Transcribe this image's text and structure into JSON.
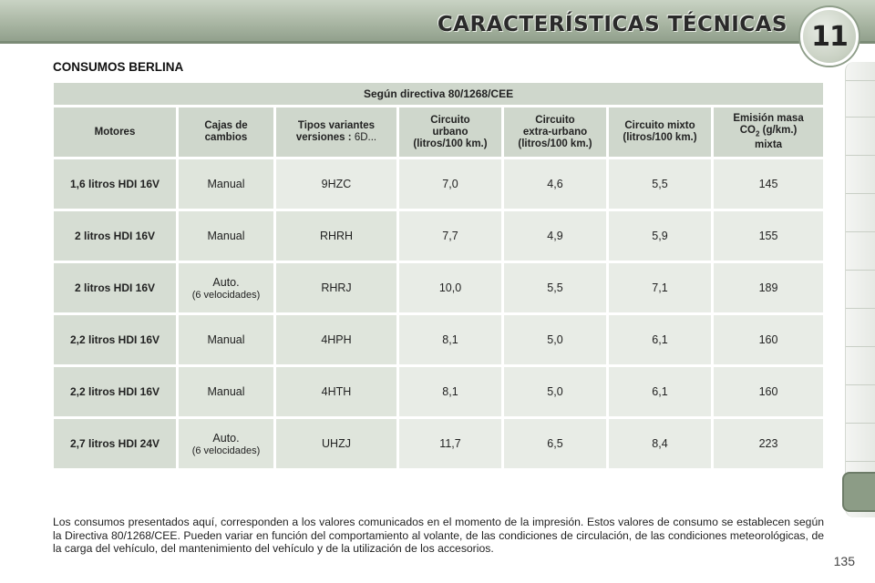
{
  "header": {
    "chapter_title": "CARACTERÍSTICAS TÉCNICAS",
    "chapter_number": "11"
  },
  "section_title": "CONSUMOS BERLINA",
  "table": {
    "directive": "Según directiva 80/1268/CEE",
    "headers": {
      "motores": "Motores",
      "cajas_1": "Cajas de",
      "cajas_2": "cambios",
      "tipos_1": "Tipos variantes",
      "tipos_2": "versiones :",
      "tipos_suffix": "6D...",
      "urbano_1": "Circuito",
      "urbano_2": "urbano",
      "urbano_3": "(litros/100 km.)",
      "extra_1": "Circuito",
      "extra_2": "extra-urbano",
      "extra_3": "(litros/100 km.)",
      "mixto_1": "Circuito mixto",
      "mixto_2": "(litros/100 km.)",
      "emision_1": "Emisión masa",
      "emision_2a": "CO",
      "emision_2sub": "2",
      "emision_2b": " (g/km.)",
      "emision_3": "mixta"
    },
    "rows": [
      {
        "motor": "1,6 litros HDI 16V",
        "caja": "Manual",
        "caja_sub": "",
        "tipo": "9HZC",
        "urbano": "7,0",
        "extra": "4,6",
        "mixto": "5,5",
        "co2": "145"
      },
      {
        "motor": "2 litros HDI 16V",
        "caja": "Manual",
        "caja_sub": "",
        "tipo": "RHRH",
        "urbano": "7,7",
        "extra": "4,9",
        "mixto": "5,9",
        "co2": "155"
      },
      {
        "motor": "2 litros HDI 16V",
        "caja": "Auto.",
        "caja_sub": "(6 velocidades)",
        "tipo": "RHRJ",
        "urbano": "10,0",
        "extra": "5,5",
        "mixto": "7,1",
        "co2": "189"
      },
      {
        "motor": "2,2 litros HDI 16V",
        "caja": "Manual",
        "caja_sub": "",
        "tipo": "4HPH",
        "urbano": "8,1",
        "extra": "5,0",
        "mixto": "6,1",
        "co2": "160"
      },
      {
        "motor": "2,2 litros HDI 16V",
        "caja": "Manual",
        "caja_sub": "",
        "tipo": "4HTH",
        "urbano": "8,1",
        "extra": "5,0",
        "mixto": "6,1",
        "co2": "160"
      },
      {
        "motor": "2,7 litros HDI 24V",
        "caja": "Auto.",
        "caja_sub": "(6 velocidades)",
        "tipo": "UHZJ",
        "urbano": "11,7",
        "extra": "6,5",
        "mixto": "8,4",
        "co2": "223"
      }
    ]
  },
  "footnote": "Los consumos presentados aquí, corresponden a los valores comunicados en el momento de la impresión. Estos valores de consumo se establecen según la Directiva 80/1268/CEE. Pueden variar en función del comportamiento al volante, de las condiciones de circulación, de las condiciones meteorológicas, de la carga del vehículo, del mantenimiento del vehículo y de la utilización de los accesorios.",
  "page_number": "135"
}
